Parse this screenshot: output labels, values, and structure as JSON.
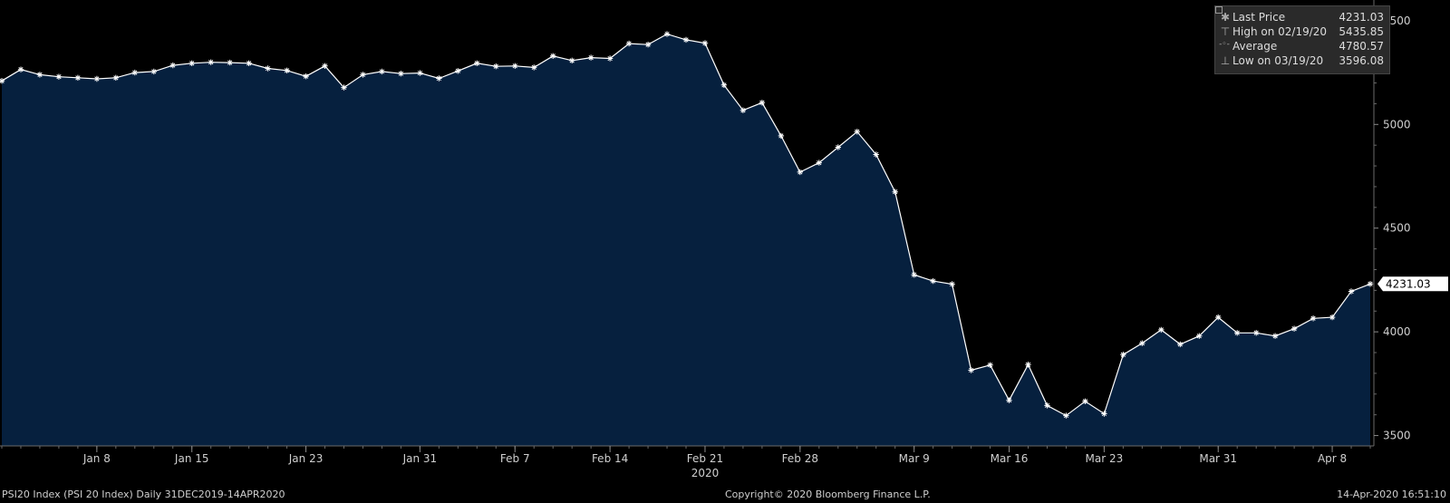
{
  "chart_data": {
    "type": "line",
    "series": [
      {
        "name": "Last Price",
        "x": [
          "12/31/19",
          "01/02/20",
          "01/03/20",
          "01/06/20",
          "01/07/20",
          "01/08/20",
          "01/09/20",
          "01/10/20",
          "01/13/20",
          "01/14/20",
          "01/15/20",
          "01/16/20",
          "01/17/20",
          "01/20/20",
          "01/21/20",
          "01/22/20",
          "01/23/20",
          "01/24/20",
          "01/27/20",
          "01/28/20",
          "01/29/20",
          "01/30/20",
          "01/31/20",
          "02/03/20",
          "02/04/20",
          "02/05/20",
          "02/06/20",
          "02/07/20",
          "02/10/20",
          "02/11/20",
          "02/12/20",
          "02/13/20",
          "02/14/20",
          "02/17/20",
          "02/18/20",
          "02/19/20",
          "02/20/20",
          "02/21/20",
          "02/24/20",
          "02/25/20",
          "02/26/20",
          "02/27/20",
          "02/28/20",
          "03/02/20",
          "03/03/20",
          "03/04/20",
          "03/05/20",
          "03/06/20",
          "03/09/20",
          "03/10/20",
          "03/11/20",
          "03/12/20",
          "03/13/20",
          "03/16/20",
          "03/17/20",
          "03/18/20",
          "03/19/20",
          "03/20/20",
          "03/23/20",
          "03/24/20",
          "03/25/20",
          "03/26/20",
          "03/27/20",
          "03/30/20",
          "03/31/20",
          "04/01/20",
          "04/02/20",
          "04/03/20",
          "04/06/20",
          "04/07/20",
          "04/08/20",
          "04/09/20",
          "04/14/20"
        ],
        "values": [
          5210,
          5265,
          5240,
          5230,
          5225,
          5220,
          5225,
          5250,
          5255,
          5285,
          5295,
          5300,
          5298,
          5295,
          5270,
          5260,
          5232,
          5282,
          5178,
          5240,
          5255,
          5245,
          5248,
          5222,
          5258,
          5295,
          5280,
          5282,
          5275,
          5330,
          5308,
          5322,
          5318,
          5390,
          5385,
          5435.85,
          5408,
          5392,
          5190,
          5068,
          5105,
          4945,
          4770,
          4815,
          4890,
          4965,
          4855,
          4675,
          4275,
          4245,
          4230,
          3815,
          3840,
          3670,
          3842,
          3645,
          3596.08,
          3665,
          3605,
          3890,
          3945,
          4010,
          3940,
          3980,
          4070,
          3995,
          3995,
          3980,
          4015,
          4065,
          4070,
          4195,
          4231.03
        ]
      }
    ],
    "ylim": [
      3450,
      5600
    ],
    "yticks": [
      3500,
      4000,
      4500,
      5000,
      5500
    ],
    "xticks": [
      {
        "date": "01/08/20",
        "label": "Jan 8"
      },
      {
        "date": "01/15/20",
        "label": "Jan 15"
      },
      {
        "date": "01/23/20",
        "label": "Jan 23"
      },
      {
        "date": "01/31/20",
        "label": "Jan 31"
      },
      {
        "date": "02/07/20",
        "label": "Feb 7"
      },
      {
        "date": "02/14/20",
        "label": "Feb 14"
      },
      {
        "date": "02/21/20",
        "label": "Feb 21"
      },
      {
        "date": "02/28/20",
        "label": "Feb 28"
      },
      {
        "date": "03/09/20",
        "label": "Mar 9"
      },
      {
        "date": "03/16/20",
        "label": "Mar 16"
      },
      {
        "date": "03/23/20",
        "label": "Mar 23"
      },
      {
        "date": "03/31/20",
        "label": "Mar 31"
      },
      {
        "date": "04/08/20",
        "label": "Apr 8"
      }
    ],
    "year_label": {
      "date": "02/21/20",
      "label": "2020"
    },
    "last_value_label": "4231.03",
    "grid": false,
    "legend_position": "top-right",
    "colors": {
      "background": "#000000",
      "fill": "#06203e",
      "line": "#ffffff",
      "axis": "#6a6a6a"
    }
  },
  "legend": {
    "rows": [
      {
        "symbol": "✱",
        "label": "Last Price",
        "value": "4231.03"
      },
      {
        "symbol": "⊤",
        "label": "High on 02/19/20",
        "value": "5435.85"
      },
      {
        "symbol": "-◦-",
        "label": "Average",
        "value": "4780.57"
      },
      {
        "symbol": "⊥",
        "label": "Low on 03/19/20",
        "value": "3596.08"
      }
    ]
  },
  "footer": {
    "security": "PSI20 Index (PSI 20 Index)  Daily 31DEC2019-14APR2020",
    "copyright": "Copyright© 2020 Bloomberg Finance L.P.",
    "timestamp": "14-Apr-2020 16:51:10"
  }
}
